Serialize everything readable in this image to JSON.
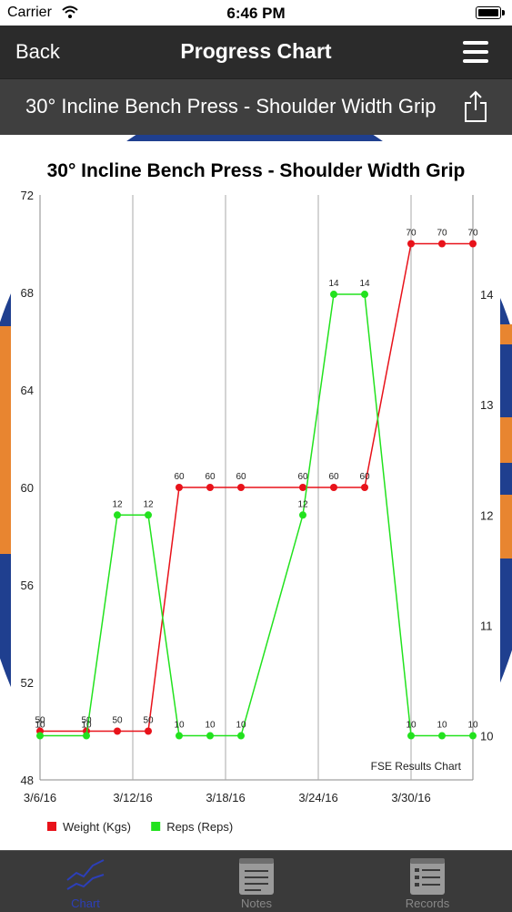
{
  "status_bar": {
    "carrier": "Carrier",
    "time": "6:46 PM"
  },
  "nav": {
    "back_label": "Back",
    "title": "Progress Chart",
    "menu_icon": "hamburger-menu-icon"
  },
  "exercise": {
    "title": "30° Incline Bench Press - Shoulder Width Grip",
    "share_icon": "share-icon"
  },
  "chart_data": {
    "type": "line",
    "title": "30° Incline Bench Press - Shoulder Width Grip",
    "watermark": "FSE Results Chart",
    "x_ticks": [
      "3/6/16",
      "3/12/16",
      "3/18/16",
      "3/24/16",
      "3/30/16"
    ],
    "y_left": {
      "ticks": [
        48,
        52,
        56,
        60,
        64,
        68,
        72
      ],
      "range": [
        48,
        72
      ]
    },
    "y_right": {
      "ticks": [
        10,
        11,
        12,
        13,
        14
      ],
      "range": [
        9.6,
        14.9
      ]
    },
    "series": [
      {
        "name": "Weight (Kgs)",
        "color": "#e8121a",
        "axis": "left",
        "points": [
          {
            "x": "3/6/16",
            "y": 50
          },
          {
            "x": "3/9/16",
            "y": 50
          },
          {
            "x": "3/11/16",
            "y": 50
          },
          {
            "x": "3/13/16",
            "y": 50
          },
          {
            "x": "3/15/16",
            "y": 60
          },
          {
            "x": "3/17/16",
            "y": 60
          },
          {
            "x": "3/19/16",
            "y": 60
          },
          {
            "x": "3/23/16",
            "y": 60
          },
          {
            "x": "3/25/16",
            "y": 60
          },
          {
            "x": "3/27/16",
            "y": 60
          },
          {
            "x": "3/30/16",
            "y": 70
          },
          {
            "x": "4/1/16",
            "y": 70
          },
          {
            "x": "4/3/16",
            "y": 70
          }
        ]
      },
      {
        "name": "Reps (Reps)",
        "color": "#22e21e",
        "axis": "right",
        "points": [
          {
            "x": "3/6/16",
            "y": 10
          },
          {
            "x": "3/9/16",
            "y": 10
          },
          {
            "x": "3/11/16",
            "y": 12
          },
          {
            "x": "3/13/16",
            "y": 12
          },
          {
            "x": "3/15/16",
            "y": 10
          },
          {
            "x": "3/17/16",
            "y": 10
          },
          {
            "x": "3/19/16",
            "y": 10
          },
          {
            "x": "3/23/16",
            "y": 12
          },
          {
            "x": "3/25/16",
            "y": 14
          },
          {
            "x": "3/27/16",
            "y": 14
          },
          {
            "x": "3/30/16",
            "y": 10
          },
          {
            "x": "4/1/16",
            "y": 10
          },
          {
            "x": "4/3/16",
            "y": 10
          }
        ]
      }
    ],
    "grid": "vertical",
    "legend_position": "bottom-left"
  },
  "tabs": [
    {
      "label": "Chart",
      "icon": "line-chart-icon",
      "active": true
    },
    {
      "label": "Notes",
      "icon": "notes-icon",
      "active": false
    },
    {
      "label": "Records",
      "icon": "records-icon",
      "active": false
    }
  ]
}
